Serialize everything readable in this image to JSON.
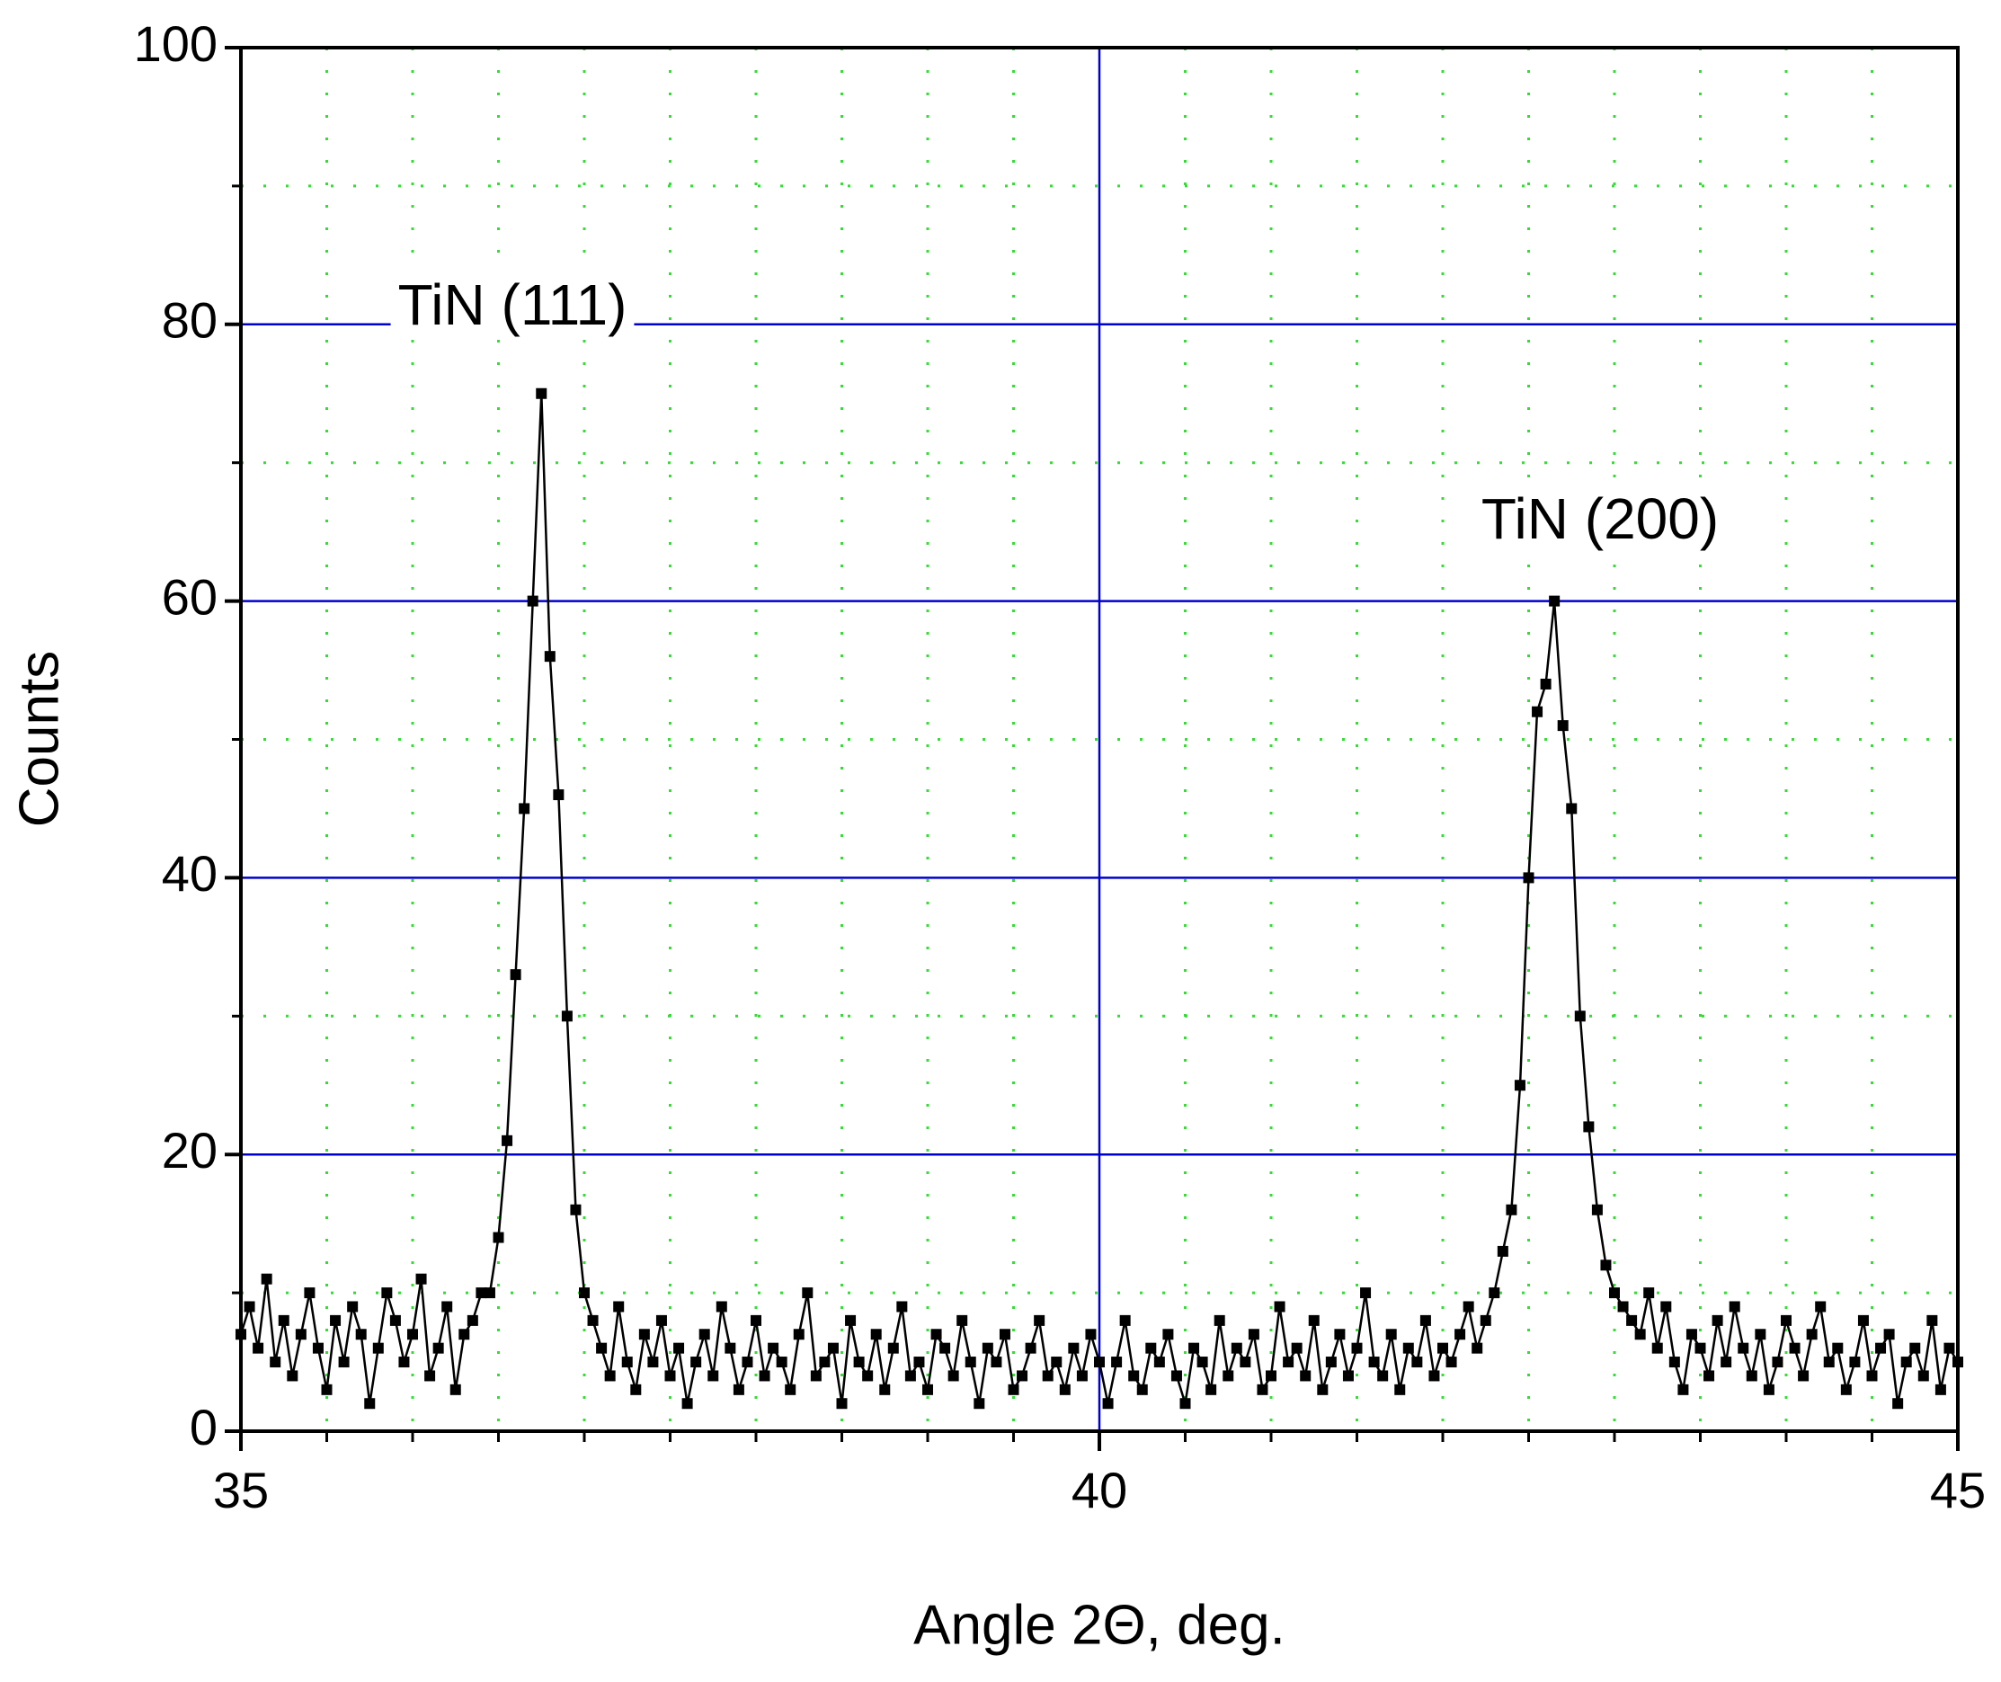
{
  "chart_data": {
    "type": "line",
    "xlabel": "Angle 2Θ, deg.",
    "ylabel": "Counts",
    "annotations": [
      "TiN (111)",
      "TiN (200)"
    ],
    "x": [
      35,
      35.05,
      35.1,
      35.15,
      35.2,
      35.25,
      35.3,
      35.35,
      35.4,
      35.45,
      35.5,
      35.55,
      35.6,
      35.65,
      35.7,
      35.75,
      35.8,
      35.85,
      35.9,
      35.95,
      36,
      36.05,
      36.1,
      36.15,
      36.2,
      36.25,
      36.3,
      36.35,
      36.4,
      36.45,
      36.5,
      36.55,
      36.6,
      36.65,
      36.7,
      36.75,
      36.8,
      36.85,
      36.9,
      36.95,
      37,
      37.05,
      37.1,
      37.15,
      37.2,
      37.25,
      37.3,
      37.35,
      37.4,
      37.45,
      37.5,
      37.55,
      37.6,
      37.65,
      37.7,
      37.75,
      37.8,
      37.85,
      37.9,
      37.95,
      38,
      38.05,
      38.1,
      38.15,
      38.2,
      38.25,
      38.3,
      38.35,
      38.4,
      38.45,
      38.5,
      38.55,
      38.6,
      38.65,
      38.7,
      38.75,
      38.8,
      38.85,
      38.9,
      38.95,
      39,
      39.05,
      39.1,
      39.15,
      39.2,
      39.25,
      39.3,
      39.35,
      39.4,
      39.45,
      39.5,
      39.55,
      39.6,
      39.65,
      39.7,
      39.75,
      39.8,
      39.85,
      39.9,
      39.95,
      40,
      40.05,
      40.1,
      40.15,
      40.2,
      40.25,
      40.3,
      40.35,
      40.4,
      40.45,
      40.5,
      40.55,
      40.6,
      40.65,
      40.7,
      40.75,
      40.8,
      40.85,
      40.9,
      40.95,
      41,
      41.05,
      41.1,
      41.15,
      41.2,
      41.25,
      41.3,
      41.35,
      41.4,
      41.45,
      41.5,
      41.55,
      41.6,
      41.65,
      41.7,
      41.75,
      41.8,
      41.85,
      41.9,
      41.95,
      42,
      42.05,
      42.1,
      42.15,
      42.2,
      42.25,
      42.3,
      42.35,
      42.4,
      42.45,
      42.5,
      42.55,
      42.6,
      42.65,
      42.7,
      42.75,
      42.8,
      42.85,
      42.9,
      42.95,
      43,
      43.05,
      43.1,
      43.15,
      43.2,
      43.25,
      43.3,
      43.35,
      43.4,
      43.45,
      43.5,
      43.55,
      43.6,
      43.65,
      43.7,
      43.75,
      43.8,
      43.85,
      43.9,
      43.95,
      44,
      44.05,
      44.1,
      44.15,
      44.2,
      44.25,
      44.3,
      44.35,
      44.4,
      44.45,
      44.5,
      44.55,
      44.6,
      44.65,
      44.7,
      44.75,
      44.8,
      44.85,
      44.9,
      44.95,
      45
    ],
    "series": [
      {
        "color": "#000000",
        "values": [
          7,
          9,
          6,
          11,
          5,
          8,
          4,
          7,
          10,
          6,
          3,
          8,
          5,
          9,
          7,
          2,
          6,
          10,
          8,
          5,
          7,
          11,
          4,
          6,
          9,
          3,
          7,
          8,
          10,
          10,
          14,
          21,
          33,
          45,
          60,
          75,
          56,
          46,
          30,
          16,
          10,
          8,
          6,
          4,
          9,
          5,
          3,
          7,
          5,
          8,
          4,
          6,
          2,
          5,
          7,
          4,
          9,
          6,
          3,
          5,
          8,
          4,
          6,
          5,
          3,
          7,
          10,
          4,
          5,
          6,
          2,
          8,
          5,
          4,
          7,
          3,
          6,
          9,
          4,
          5,
          3,
          7,
          6,
          4,
          8,
          5,
          2,
          6,
          5,
          7,
          3,
          4,
          6,
          8,
          4,
          5,
          3,
          6,
          4,
          7,
          5,
          2,
          5,
          8,
          4,
          3,
          6,
          5,
          7,
          4,
          2,
          6,
          5,
          3,
          8,
          4,
          6,
          5,
          7,
          3,
          4,
          9,
          5,
          6,
          4,
          8,
          3,
          5,
          7,
          4,
          6,
          10,
          5,
          4,
          7,
          3,
          6,
          5,
          8,
          4,
          6,
          5,
          7,
          9,
          6,
          8,
          10,
          13,
          16,
          25,
          40,
          52,
          54,
          60,
          51,
          45,
          30,
          22,
          16,
          12,
          10,
          9,
          8,
          7,
          10,
          6,
          9,
          5,
          3,
          7,
          6,
          4,
          8,
          5,
          9,
          6,
          4,
          7,
          3,
          5,
          8,
          6,
          4,
          7,
          9,
          5,
          6,
          3,
          5,
          8,
          4,
          6,
          7,
          2,
          5,
          6,
          4,
          8,
          3,
          6,
          5
        ]
      }
    ],
    "xlim": [
      35,
      45
    ],
    "ylim": [
      0,
      100
    ],
    "xticks": [
      35,
      40,
      45
    ],
    "yticks": [
      0,
      20,
      40,
      60,
      80,
      100
    ],
    "xminorticks": [
      35.5,
      36,
      36.5,
      37,
      37.5,
      38,
      38.5,
      39,
      39.5,
      40.5,
      41,
      41.5,
      42,
      42.5,
      43,
      43.5,
      44,
      44.5
    ],
    "yminorticks": [
      10,
      30,
      50,
      70,
      90
    ],
    "grid": true,
    "grid_color": "#0000cc",
    "minor_grid_color": "#33dd33"
  }
}
